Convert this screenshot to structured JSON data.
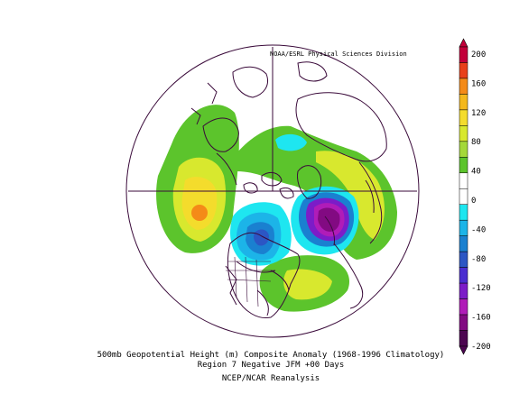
{
  "credit": "NOAA/ESRL Physical Sciences Division",
  "caption": {
    "line1": "500mb Geopotential Height (m) Composite Anomaly (1968-1996 Climatology)",
    "line2": "Region 7 Negative JFM +00 Days",
    "line3": "NCEP/NCAR Reanalysis"
  },
  "colorbar": {
    "labels": [
      "200",
      "160",
      "120",
      "80",
      "40",
      "0",
      "-40",
      "-80",
      "-120",
      "-160",
      "-200"
    ],
    "colors": [
      "#c2003a",
      "#e8401a",
      "#f48a18",
      "#f4b81c",
      "#f4dc2c",
      "#d8e82e",
      "#a4d83a",
      "#5cc42c",
      "#ffffff",
      "#ffffff",
      "#1ee6f0",
      "#1cb4e8",
      "#1a80d0",
      "#2c56c4",
      "#4a2ed0",
      "#7c1cc8",
      "#b01cb8",
      "#820a82",
      "#4c0650"
    ]
  },
  "colors": {
    "land_outline": "#3a0a3a",
    "gridline": "#3a0a3a"
  }
}
